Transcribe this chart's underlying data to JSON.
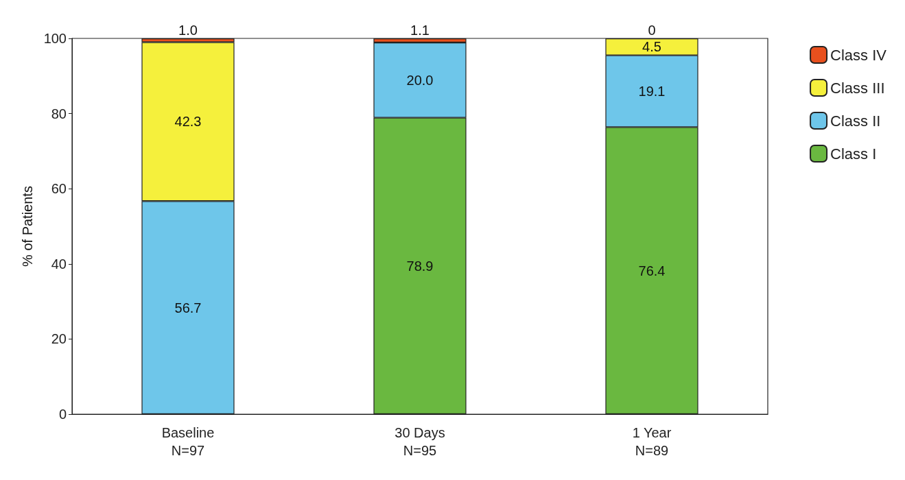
{
  "chart_data": {
    "type": "bar",
    "stacked": true,
    "ylabel": "% of Patients",
    "categories": [
      "Baseline\nN=97",
      "30 Days\nN=95",
      "1 Year\nN=89"
    ],
    "ylim": [
      0,
      100
    ],
    "yticks": [
      0,
      20,
      40,
      60,
      80,
      100
    ],
    "grid": false,
    "legend": "top right",
    "series": [
      {
        "name": "Class I",
        "color": "#6ab840",
        "values": [
          0,
          78.9,
          76.4
        ],
        "value_labels": [
          null,
          "78.9",
          "76.4"
        ]
      },
      {
        "name": "Class II",
        "color": "#6ec6ea",
        "values": [
          56.7,
          20.0,
          19.1
        ],
        "value_labels": [
          "56.7",
          "20.0",
          "19.1"
        ]
      },
      {
        "name": "Class III",
        "color": "#f5f03c",
        "values": [
          42.3,
          0,
          4.5
        ],
        "value_labels": [
          "42.3",
          null,
          "4.5"
        ]
      },
      {
        "name": "Class IV",
        "color": "#e8501e",
        "values": [
          1.0,
          1.1,
          0
        ],
        "value_labels": [
          "1.0",
          "1.1",
          "0"
        ]
      }
    ]
  }
}
